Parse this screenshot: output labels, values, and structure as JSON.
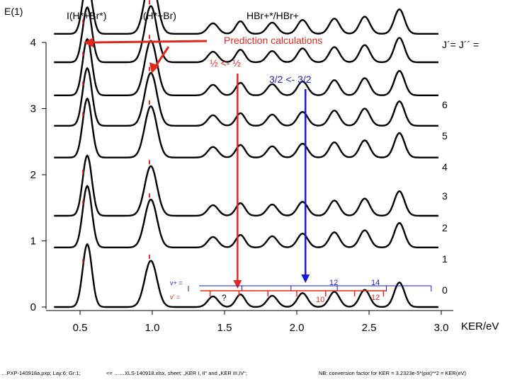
{
  "header": {
    "corner_label": "E(1)",
    "peak_label_1": "I(H*+Br*)",
    "peak_label_2": "I(H*+Br)",
    "ratio_label": "HBr+*/HBr+",
    "prediction_label": "Prediction calculations",
    "transition_label_half": "½ <- ½",
    "transition_label_three_half": "3/2 <- 3/2",
    "j_header": "J´= J´´ ="
  },
  "right_labels": [
    "6",
    "5",
    "4",
    "3",
    "2",
    "1",
    "0"
  ],
  "vibrational": {
    "vplus_label": "v+ =",
    "vprime_label": "v' =",
    "blue_12": "12",
    "blue_14": "14",
    "red_q": "?",
    "red_10": "10",
    "red_12": "12"
  },
  "footer": {
    "left": "…PXP-140918a,pxp; Lay:6; Gr:1;",
    "middle": "<= ……XLS-140918.xlsx, sheet: „KER I, II“ and „KER III,IV“;",
    "right": "NB: conversion factor for KER = 3.2323e-5*(pix)**2 = KER(eV)"
  },
  "colors": {
    "red": "#e0281e",
    "blue": "#1a1ad0",
    "trace": "#000000",
    "axis": "#000000"
  },
  "chart_data": {
    "type": "line",
    "title": "",
    "xlabel": "KER/eV",
    "ylabel": "",
    "xlim": [
      0.3,
      3.0
    ],
    "ylim": [
      -0.1,
      4.3
    ],
    "x_ticks": [
      0.5,
      1.0,
      1.5,
      2.0,
      2.5,
      3.0
    ],
    "x_tick_labels": [
      "0.5",
      "1.0",
      "1.5",
      "2.0",
      "2.5",
      "3.0"
    ],
    "y_ticks": [
      0,
      1,
      2,
      3,
      4
    ],
    "y_tick_labels": [
      "0",
      "1",
      "2",
      "3",
      "4"
    ],
    "grid": false,
    "trace_offsets": [
      0.0,
      0.9,
      1.38,
      2.26,
      2.74,
      3.2,
      3.7,
      4.13
    ],
    "peaks_eV": [
      0.55,
      0.99,
      1.42,
      1.61,
      1.83,
      2.04,
      2.26,
      2.47,
      2.71
    ],
    "peak_heights": [
      0.95,
      0.85,
      0.16,
      0.19,
      0.17,
      0.21,
      0.23,
      0.26,
      0.37
    ],
    "annotations": {
      "red_vertical_x": 1.59,
      "blue_vertical_x": 2.06,
      "blue_vplus_ticks_eV": [
        1.25,
        1.62,
        1.96,
        2.28,
        2.62,
        2.93
      ],
      "red_vprime_ticks_eV": [
        1.4,
        1.6,
        1.8,
        2.0,
        2.2,
        2.4,
        2.6
      ]
    }
  }
}
